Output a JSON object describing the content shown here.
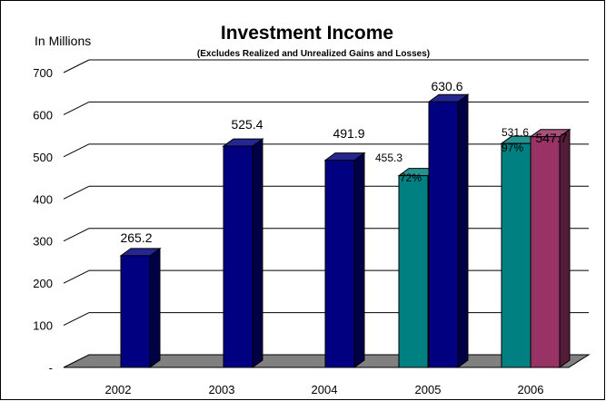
{
  "chart_data": {
    "type": "bar",
    "title": "Investment Income",
    "subtitle": "(Excludes Realized and Unrealized Gains and Losses)",
    "ylabel": "In Millions",
    "ylim": [
      0,
      700
    ],
    "yticks": [
      {
        "value": 0,
        "label": "-"
      },
      {
        "value": 100,
        "label": "100"
      },
      {
        "value": 200,
        "label": "200"
      },
      {
        "value": 300,
        "label": "300"
      },
      {
        "value": 400,
        "label": "400"
      },
      {
        "value": 500,
        "label": "500"
      },
      {
        "value": 600,
        "label": "600"
      },
      {
        "value": 700,
        "label": "700"
      }
    ],
    "grid": true,
    "categories": [
      "2002",
      "2003",
      "2004",
      "2005",
      "2006"
    ],
    "bars": [
      {
        "category": "2002",
        "value": 265.2,
        "label": "265.2",
        "color": "#000080"
      },
      {
        "category": "2003",
        "value": 525.4,
        "label": "525.4",
        "color": "#000080"
      },
      {
        "category": "2004",
        "value": 491.9,
        "label": "491.9",
        "color": "#000080"
      },
      {
        "category": "2005",
        "value": 455.3,
        "label": "455.3",
        "pct": "72%",
        "color": "#008080"
      },
      {
        "category": "2005",
        "value": 630.6,
        "label": "630.6",
        "color": "#000080"
      },
      {
        "category": "2006",
        "value": 531.6,
        "label": "531.6",
        "pct": "97%",
        "color": "#008080"
      },
      {
        "category": "2006",
        "value": 547.7,
        "label": "547.7",
        "color": "#993366"
      }
    ]
  }
}
